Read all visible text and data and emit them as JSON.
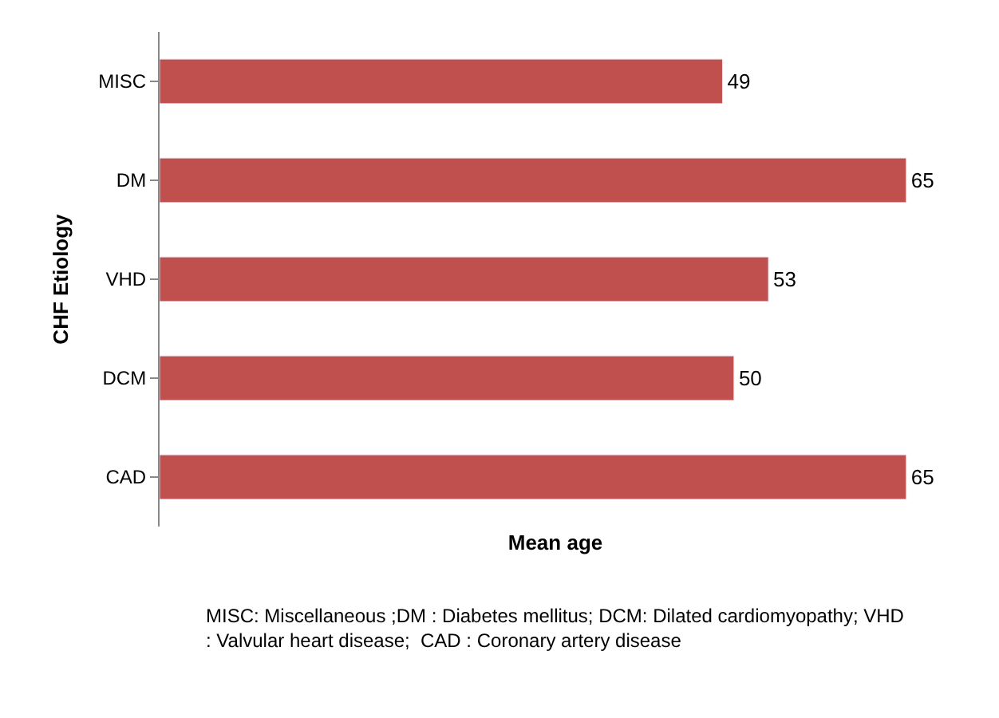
{
  "chart_data": {
    "type": "bar",
    "orientation": "horizontal",
    "xlabel": "Mean age",
    "ylabel": "CHF Etiology",
    "categories": [
      "MISC",
      "DM",
      "VHD",
      "DCM",
      "CAD"
    ],
    "values": [
      49,
      65,
      53,
      50,
      65
    ],
    "color": "#c0504d",
    "data_labels": true,
    "legend": false,
    "annotations": [
      "MISC: Miscellaneous ;DM : Diabetes mellitus; DCM: Dilated cardiomyopathy; VHD\n: Valvular heart disease;  CAD : Coronary artery disease"
    ]
  }
}
